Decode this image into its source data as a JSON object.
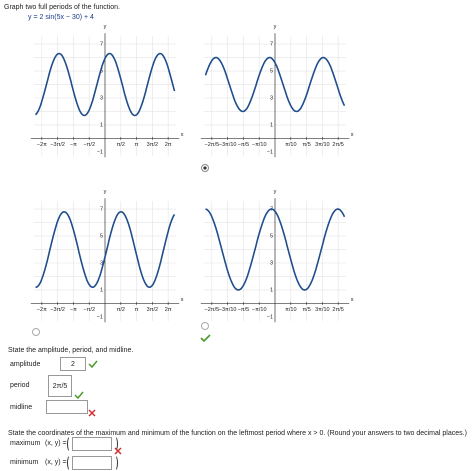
{
  "question": "Graph two full periods of the function.",
  "function": "y = 2 sin(5x − 30) + 4",
  "graphs": [
    {
      "x_label": "x",
      "y_label": "y",
      "y_ticks": [
        "7",
        "5",
        "3",
        "1",
        "−1"
      ],
      "x_ticks": [
        "−2π",
        "−3π/2",
        "−π",
        "−π/2",
        "π/2",
        "π",
        "3π/2",
        "2π"
      ]
    },
    {
      "x_label": "x",
      "y_label": "y",
      "y_ticks": [
        "7",
        "5",
        "3",
        "1",
        "−1"
      ],
      "x_ticks": [
        "−2π/5",
        "−3π/10",
        "−π/5",
        "−π/10",
        "π/10",
        "π/5",
        "3π/10",
        "2π/5"
      ]
    },
    {
      "x_label": "x",
      "y_label": "y",
      "y_ticks": [
        "7",
        "5",
        "3",
        "1",
        "−1"
      ],
      "x_ticks": [
        "−2π",
        "−3π/2",
        "−π",
        "−π/2",
        "π/2",
        "π",
        "3π/2",
        "2π"
      ]
    },
    {
      "x_label": "x",
      "y_label": "y",
      "y_ticks": [
        "7",
        "5",
        "3",
        "1",
        "−1"
      ],
      "x_ticks": [
        "−2π/5",
        "−3π/10",
        "−π/5",
        "−π/10",
        "π/10",
        "π/5",
        "3π/10",
        "2π/5"
      ]
    }
  ],
  "part2": {
    "prompt": "State the amplitude, period, and midline.",
    "fields": [
      {
        "label": "amplitude",
        "value": "2"
      },
      {
        "label": "period",
        "value": "2π/5"
      },
      {
        "label": "midline"
      }
    ]
  },
  "part3": {
    "prompt": "State the coordinates of the maximum and minimum of the function on the leftmost period where x > 0. (Round your answers to two decimal places.)",
    "fields": [
      {
        "label": "maximum",
        "coords": "(x, y) ="
      },
      {
        "label": "minimum",
        "coords": "(x, y) ="
      }
    ]
  }
}
